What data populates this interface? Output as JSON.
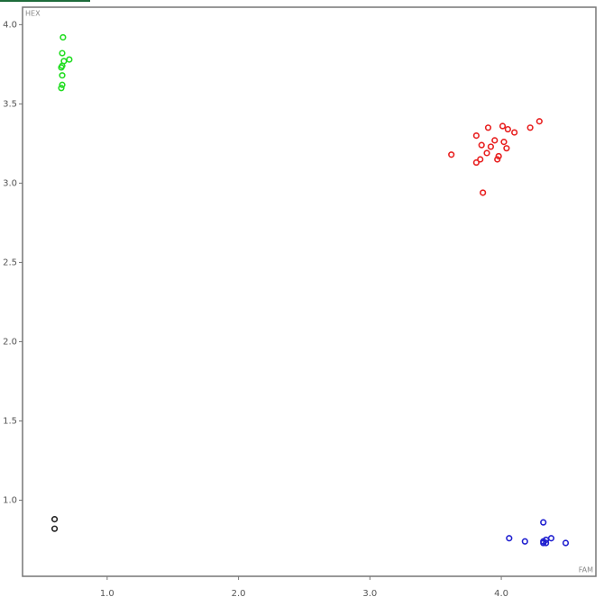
{
  "chart_data": {
    "type": "scatter",
    "x_label": "FAM",
    "y_label": "HEX",
    "xlim": [
      0.356,
      4.72
    ],
    "ylim": [
      0.52,
      4.11
    ],
    "xticks": [
      {
        "value": 1,
        "label": "1.0"
      },
      {
        "value": 2,
        "label": "2.0"
      },
      {
        "value": 3,
        "label": "3.0"
      },
      {
        "value": 4,
        "label": "4.0"
      }
    ],
    "yticks": [
      {
        "value": 1,
        "label": "1.0"
      },
      1.5,
      {
        "value": 2,
        "label": "2.0"
      },
      2.5,
      {
        "value": 3,
        "label": "3.0"
      },
      3.5,
      {
        "value": 4,
        "label": "4.0"
      }
    ],
    "series": [
      {
        "color": "#22dd22",
        "x": [
          0.664,
          0.658,
          0.712,
          0.671,
          0.658,
          0.651,
          0.658,
          0.658,
          0.651
        ],
        "values": [
          3.92,
          3.82,
          3.78,
          3.77,
          3.74,
          3.73,
          3.68,
          3.62,
          3.6
        ]
      },
      {
        "color": "#e82020",
        "x": [
          3.62,
          3.81,
          3.9,
          4.01,
          4.1,
          4.05,
          3.85,
          3.95,
          3.92,
          3.89,
          3.84,
          3.81,
          3.98,
          3.97,
          4.02,
          4.04,
          4.22,
          4.29,
          3.86
        ],
        "values": [
          3.18,
          3.3,
          3.35,
          3.36,
          3.32,
          3.34,
          3.24,
          3.27,
          3.23,
          3.19,
          3.15,
          3.13,
          3.17,
          3.15,
          3.26,
          3.22,
          3.35,
          3.39,
          2.94
        ]
      },
      {
        "color": "#2020d0",
        "x": [
          4.32,
          4.06,
          4.18,
          4.32,
          4.34,
          4.38,
          4.32,
          4.34,
          4.49
        ],
        "values": [
          0.86,
          0.76,
          0.74,
          0.74,
          0.75,
          0.76,
          0.73,
          0.73,
          0.73
        ]
      },
      {
        "color": "#222222",
        "x": [
          0.6,
          0.6
        ],
        "values": [
          0.88,
          0.82
        ]
      }
    ]
  }
}
